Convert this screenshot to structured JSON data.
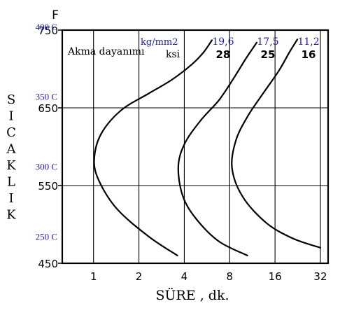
{
  "chart_data": {
    "type": "line",
    "xlabel": "SÜRE , dk.",
    "ylabel": "SICAKLIK",
    "ylabel_unit": "F",
    "x_scale": "log2",
    "x_ticks": [
      "1",
      "2",
      "4",
      "8",
      "16",
      "32"
    ],
    "x_tick_values": [
      1,
      2,
      4,
      8,
      16,
      32
    ],
    "y_ticks": [
      "750",
      "650",
      "550",
      "450"
    ],
    "y_tick_values": [
      750,
      650,
      550,
      450
    ],
    "y_celsius_labels": [
      {
        "label": "400 C",
        "at_f": 752
      },
      {
        "label": "350 C",
        "at_f": 662
      },
      {
        "label": "300 C",
        "at_f": 572
      },
      {
        "label": "250 C",
        "at_f": 482
      }
    ],
    "xlim": [
      0.62,
      36
    ],
    "ylim": [
      450,
      750
    ],
    "grid": true,
    "annotation_title": "Akma dayanımı",
    "unit_labels": {
      "metric": "kg/mm2",
      "imperial": "ksi"
    },
    "series": [
      {
        "name": "28",
        "metric_value": "19,6",
        "points": [
          [
            3.6,
            460
          ],
          [
            2.3,
            485
          ],
          [
            1.4,
            522
          ],
          [
            1.05,
            563
          ],
          [
            1.02,
            592
          ],
          [
            1.15,
            620
          ],
          [
            1.55,
            648
          ],
          [
            2.3,
            668
          ],
          [
            3.3,
            686
          ],
          [
            4.5,
            706
          ],
          [
            5.4,
            722
          ],
          [
            6.1,
            737
          ]
        ]
      },
      {
        "name": "25",
        "metric_value": "17,5",
        "points": [
          [
            10.5,
            460
          ],
          [
            6.8,
            478
          ],
          [
            4.8,
            507
          ],
          [
            3.9,
            537
          ],
          [
            3.65,
            575
          ],
          [
            4.05,
            605
          ],
          [
            5.2,
            635
          ],
          [
            6.8,
            660
          ],
          [
            8.5,
            688
          ],
          [
            10.3,
            714
          ],
          [
            12.1,
            734
          ]
        ]
      },
      {
        "name": "16",
        "metric_value": "11,2",
        "points": [
          [
            32,
            470
          ],
          [
            21,
            482
          ],
          [
            14,
            502
          ],
          [
            9.8,
            535
          ],
          [
            8.3,
            572
          ],
          [
            8.8,
            608
          ],
          [
            10.6,
            640
          ],
          [
            13.5,
            670
          ],
          [
            17,
            698
          ],
          [
            20,
            722
          ],
          [
            22.5,
            738
          ]
        ]
      }
    ]
  }
}
